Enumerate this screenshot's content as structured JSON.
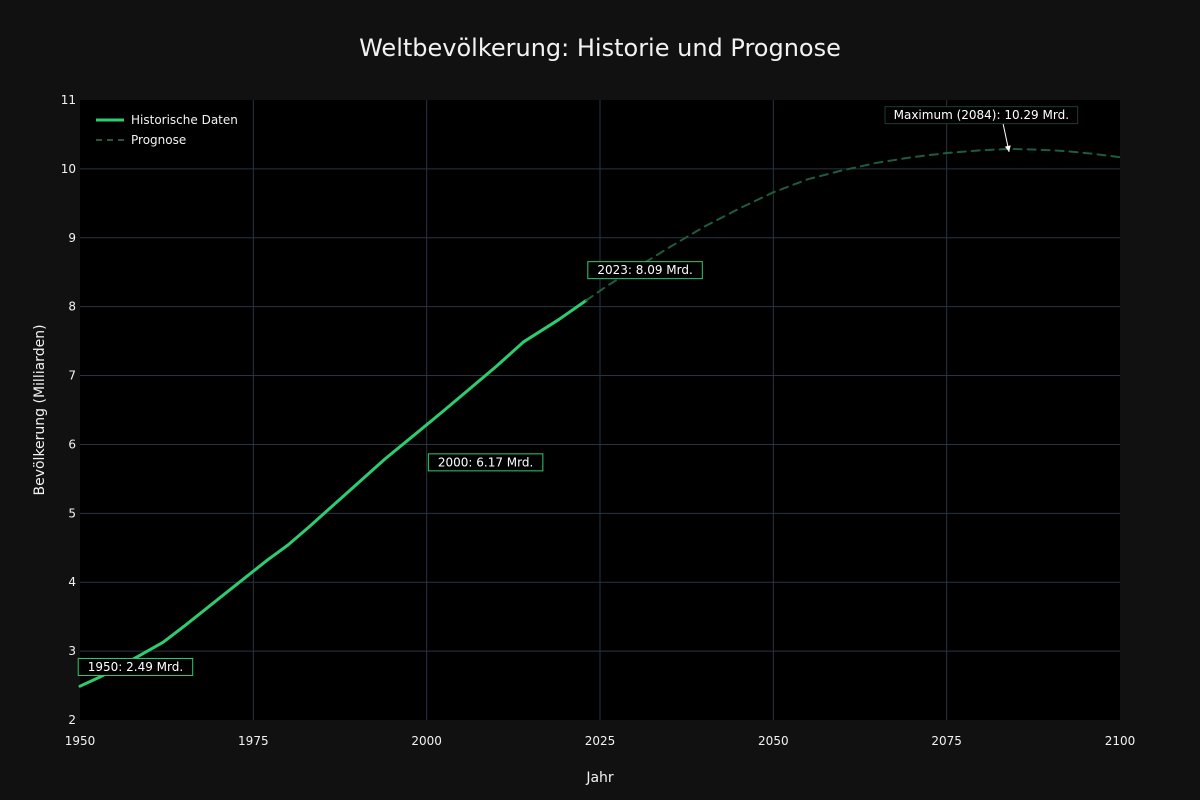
{
  "chart_data": {
    "type": "line",
    "title": "Weltbevölkerung: Historie und Prognose",
    "xlabel": "Jahr",
    "ylabel": "Bevölkerung (Milliarden)",
    "xlim": [
      1950,
      2100
    ],
    "ylim": [
      2,
      11
    ],
    "xticks": [
      1950,
      1975,
      2000,
      2025,
      2050,
      2075,
      2100
    ],
    "yticks": [
      2,
      3,
      4,
      5,
      6,
      7,
      8,
      9,
      10,
      11
    ],
    "grid": true,
    "legend_position": "top-left",
    "series": [
      {
        "name": "Historische Daten",
        "style": "solid",
        "color": "#2ecc71",
        "x": [
          1950,
          1953,
          1956,
          1959,
          1962,
          1965,
          1968,
          1971,
          1974,
          1977,
          1980,
          1983,
          1986,
          1990,
          1994,
          1998,
          2002,
          2006,
          2010,
          2014,
          2019,
          2023
        ],
        "y": [
          2.49,
          2.63,
          2.79,
          2.96,
          3.13,
          3.36,
          3.6,
          3.84,
          4.08,
          4.32,
          4.54,
          4.8,
          5.07,
          5.43,
          5.79,
          6.12,
          6.45,
          6.79,
          7.13,
          7.49,
          7.81,
          8.09
        ]
      },
      {
        "name": "Prognose",
        "style": "dashed",
        "color": "#1f5c3d",
        "x": [
          2023,
          2026,
          2030,
          2035,
          2040,
          2045,
          2050,
          2055,
          2060,
          2065,
          2070,
          2075,
          2080,
          2084,
          2088,
          2092,
          2096,
          2100
        ],
        "y": [
          8.09,
          8.3,
          8.55,
          8.86,
          9.16,
          9.42,
          9.66,
          9.85,
          9.98,
          10.09,
          10.17,
          10.23,
          10.27,
          10.29,
          10.28,
          10.26,
          10.22,
          10.17
        ]
      }
    ],
    "annotations": [
      {
        "text": "1950: 2.49 Mrd.",
        "x": 1950,
        "y": 2.49,
        "label_x": 1958,
        "label_y": 2.77
      },
      {
        "text": "2000: 6.17 Mrd.",
        "x": 2000,
        "y": 6.17,
        "label_x": 2008.5,
        "label_y": 5.74
      },
      {
        "text": "2023: 8.09 Mrd.",
        "x": 2023,
        "y": 8.09,
        "label_x": 2031.5,
        "label_y": 8.53
      },
      {
        "text": "Maximum (2084): 10.29 Mrd.",
        "x": 2084,
        "y": 10.29,
        "label_x": 2080,
        "label_y": 10.78,
        "arrow": true
      }
    ],
    "annotation_border_color": "#2ecc71"
  }
}
